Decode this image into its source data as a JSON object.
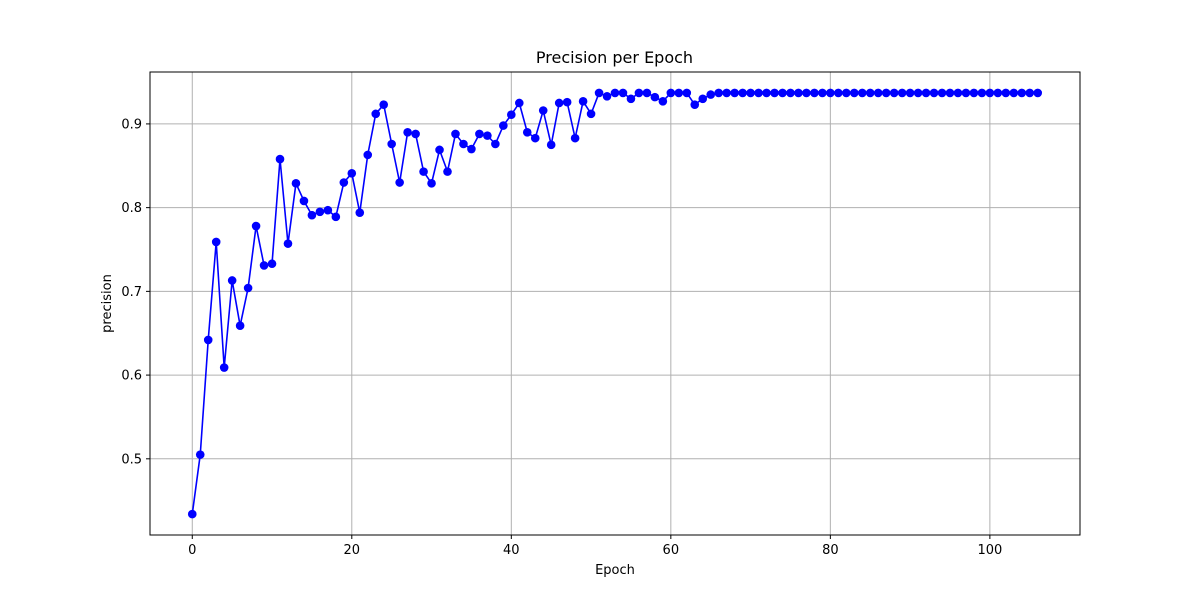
{
  "chart_data": {
    "type": "line",
    "title": "Precision per Epoch",
    "xlabel": "Epoch",
    "ylabel": "precision",
    "xlim": [
      -5.3,
      111.3
    ],
    "ylim": [
      0.409,
      0.962
    ],
    "xticks": [
      0,
      20,
      40,
      60,
      80,
      100
    ],
    "yticks": [
      0.5,
      0.6,
      0.7,
      0.8,
      0.9
    ],
    "xtick_labels": [
      "0",
      "20",
      "40",
      "60",
      "80",
      "100"
    ],
    "ytick_labels": [
      "0.5",
      "0.6",
      "0.7",
      "0.8",
      "0.9"
    ],
    "grid": true,
    "legend": "none",
    "colors": {
      "line": "#0000ff",
      "marker": "#0000ff",
      "grid": "#b0b0b0",
      "axes": "#000000",
      "background": "#ffffff"
    },
    "series": [
      {
        "x": [
          0,
          1,
          2,
          3,
          4,
          5,
          6,
          7,
          8,
          9,
          10,
          11,
          12,
          13,
          14,
          15,
          16,
          17,
          18,
          19,
          20,
          21,
          22,
          23,
          24,
          25,
          26,
          27,
          28,
          29,
          30,
          31,
          32,
          33,
          34,
          35,
          36,
          37,
          38,
          39,
          40,
          41,
          42,
          43,
          44,
          45,
          46,
          47,
          48,
          49,
          50,
          51,
          52,
          53,
          54,
          55,
          56,
          57,
          58,
          59,
          60,
          61,
          62,
          63,
          64,
          65,
          66,
          67,
          68,
          69,
          70,
          71,
          72,
          73,
          74,
          75,
          76,
          77,
          78,
          79,
          80,
          81,
          82,
          83,
          84,
          85,
          86,
          87,
          88,
          89,
          90,
          91,
          92,
          93,
          94,
          95,
          96,
          97,
          98,
          99,
          100,
          101,
          102,
          103,
          104,
          105,
          106
        ],
        "values": [
          0.434,
          0.505,
          0.642,
          0.759,
          0.609,
          0.713,
          0.659,
          0.704,
          0.778,
          0.731,
          0.733,
          0.858,
          0.757,
          0.829,
          0.808,
          0.791,
          0.795,
          0.797,
          0.789,
          0.83,
          0.841,
          0.794,
          0.863,
          0.912,
          0.923,
          0.876,
          0.83,
          0.89,
          0.888,
          0.843,
          0.829,
          0.869,
          0.843,
          0.888,
          0.876,
          0.87,
          0.888,
          0.886,
          0.876,
          0.898,
          0.911,
          0.925,
          0.89,
          0.883,
          0.916,
          0.875,
          0.925,
          0.926,
          0.883,
          0.927,
          0.912,
          0.937,
          0.933,
          0.937,
          0.937,
          0.93,
          0.937,
          0.937,
          0.932,
          0.927,
          0.937,
          0.937,
          0.937,
          0.923,
          0.93,
          0.935,
          0.937,
          0.937,
          0.937,
          0.937,
          0.937,
          0.937,
          0.937,
          0.937,
          0.937,
          0.937,
          0.937,
          0.937,
          0.937,
          0.937,
          0.937,
          0.937,
          0.937,
          0.937,
          0.937,
          0.937,
          0.937,
          0.937,
          0.937,
          0.937,
          0.937,
          0.937,
          0.937,
          0.937,
          0.937,
          0.937,
          0.937,
          0.937,
          0.937,
          0.937,
          0.937,
          0.937,
          0.937,
          0.937,
          0.937,
          0.937,
          0.937
        ]
      }
    ]
  }
}
